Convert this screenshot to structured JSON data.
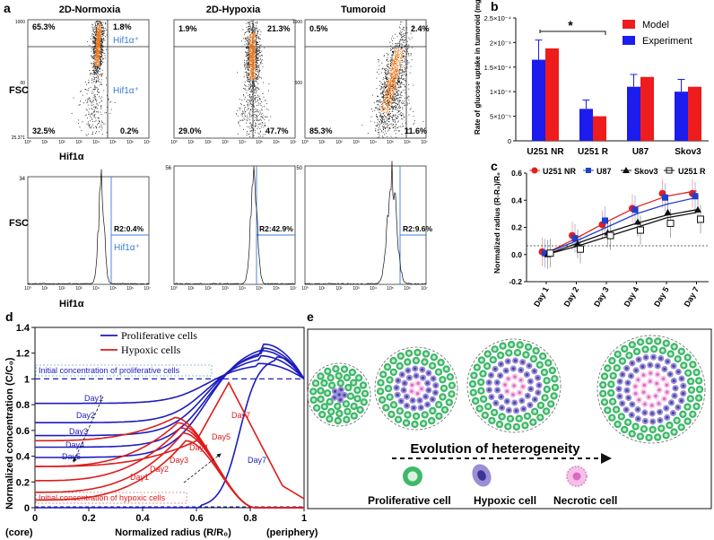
{
  "panel_labels": {
    "a": "a",
    "b": "b",
    "c": "c",
    "d": "d",
    "e": "e"
  },
  "colors": {
    "model": "#ee1c1c",
    "experiment": "#1c1cee",
    "hif": "#3a7bd5",
    "prolif": "#1c1cbe",
    "hypoxic": "#dd1c1c",
    "green_cell": "#3fb86a",
    "purple_cell": "#9a8fd6",
    "pink_cell": "#f08fd0"
  },
  "panel_a": {
    "titles": [
      "2D-Normoxia",
      "2D-Hypoxia",
      "Tumoroid"
    ],
    "fsc_label": "FSC",
    "xlabel": "Hif1α",
    "hif_plus": "Hif1α⁺",
    "scatter": [
      {
        "q": [
          "65.3%",
          "1.8%",
          "32.5%",
          "0.2%"
        ],
        "ymax": "1000",
        "ymid": "00",
        "ymin": "25.371"
      },
      {
        "q": [
          "1.9%",
          "21.3%",
          "29.0%",
          "47.7%"
        ]
      },
      {
        "q": [
          "0.5%",
          "2.4%",
          "85.3%",
          "11.6%"
        ],
        "ymax": "1000",
        "ymid": "500"
      }
    ],
    "histos": [
      {
        "r2": "R2:0.4%",
        "ymax": "34"
      },
      {
        "r2": "R2:42.9%",
        "ymax": "56"
      },
      {
        "r2": "R2:9.6%",
        "ymax": "50"
      }
    ],
    "xticks": [
      "10⁰",
      "10¹",
      "10²",
      "10³",
      "10⁴",
      "10⁵",
      "10⁶",
      "10⁷"
    ]
  },
  "chart_data": [
    {
      "type": "bar",
      "title": "",
      "ylabel": "Rate of glucose uptake in tumoroid (mg.min⁻¹)",
      "categories": [
        "U251 NR",
        "U251 R",
        "U87",
        "Skov3"
      ],
      "series": [
        {
          "name": "Experiment",
          "values": [
            0.000165,
            6.5e-05,
            0.00011,
            0.0001
          ],
          "errors": [
            4e-05,
            1.8e-05,
            2.5e-05,
            2.5e-05
          ]
        },
        {
          "name": "Model",
          "values": [
            0.000188,
            5e-05,
            0.00013,
            0.00011
          ]
        }
      ],
      "ylim": [
        0,
        0.00025
      ],
      "yticks": [
        0,
        5e-05,
        0.0001,
        0.00015,
        0.0002,
        0.00025
      ],
      "ytick_labels": [
        "0",
        "5×10⁻⁵",
        "1×10⁻⁴",
        "1.5×10⁻⁴",
        "2×10⁻⁴",
        "2.5×10⁻⁴"
      ],
      "legend": [
        "Model",
        "Experiment"
      ],
      "legend_position": "top-right",
      "annotation": "*"
    },
    {
      "type": "scatter",
      "ylabel": "Normalized radius (R-R₀)/R₀",
      "categories": [
        "Day 1",
        "Day 2",
        "Day 3",
        "Day 4",
        "Day 5",
        "Day 7"
      ],
      "ylim": [
        -0.2,
        0.6
      ],
      "yticks": [
        "-0.2",
        "0.0",
        "0.2",
        "0.4",
        "0.6"
      ],
      "series": [
        {
          "name": "U251 NR",
          "marker": "circle",
          "color": "#e02020",
          "values": [
            0.02,
            0.14,
            0.22,
            0.34,
            0.45,
            0.45
          ],
          "fit": [
            0.01,
            0.12,
            0.24,
            0.35,
            0.43,
            0.47
          ]
        },
        {
          "name": "U87",
          "marker": "square",
          "color": "#1f3fd0",
          "values": [
            0.01,
            0.12,
            0.25,
            0.33,
            0.42,
            0.43
          ],
          "fit": [
            0.01,
            0.1,
            0.2,
            0.3,
            0.37,
            0.42
          ]
        },
        {
          "name": "Skov3",
          "marker": "triangle",
          "color": "#111111",
          "values": [
            0.0,
            0.08,
            0.16,
            0.24,
            0.31,
            0.33
          ],
          "fit": [
            0.0,
            0.08,
            0.16,
            0.23,
            0.29,
            0.33
          ]
        },
        {
          "name": "U251 R",
          "marker": "open-square",
          "color": "#111111",
          "values": [
            0.01,
            0.04,
            0.14,
            0.18,
            0.23,
            0.26
          ],
          "fit": [
            0.0,
            0.06,
            0.13,
            0.2,
            0.27,
            0.31
          ]
        }
      ]
    },
    {
      "type": "line",
      "xlabel": "Normalized radius (R/R₀)",
      "ylabel": "Normalized concentration (C/C₀)",
      "xlim": [
        0,
        1
      ],
      "ylim": [
        0,
        1.4
      ],
      "xticks": [
        "0",
        "0.2",
        "0.4",
        "0.6",
        "0.8",
        "1"
      ],
      "yticks": [
        "0",
        "0.2",
        "0.4",
        "0.6",
        "0.8",
        "1",
        "1.2",
        "1.4"
      ],
      "x_left_note": "(core)",
      "x_right_note": "(periphery)",
      "legend": [
        "Proliferative cells",
        "Hypoxic cells"
      ],
      "box_prolif": "Initial concentration of proliferative cells",
      "box_hypoxic": "Initial concentration of hypoxic cells",
      "blue_labels": [
        "Day1",
        "Day2",
        "Day3",
        "Day4",
        "Day5",
        "Day7"
      ],
      "red_labels": [
        "Day1",
        "Day2",
        "Day3",
        "Day4",
        "Day5",
        "Day7"
      ],
      "series": [
        {
          "name": "Proliferative Day1",
          "start": 0.81,
          "peak": 1.12
        },
        {
          "name": "Proliferative Day2",
          "start": 0.66,
          "peak": 1.18
        },
        {
          "name": "Proliferative Day3",
          "start": 0.56,
          "peak": 1.22
        },
        {
          "name": "Proliferative Day4",
          "start": 0.47,
          "peak": 1.24
        },
        {
          "name": "Proliferative Day5",
          "start": 0.39,
          "peak": 1.27
        },
        {
          "name": "Hypoxic Day1",
          "start": 0.06,
          "peak": 0.52
        },
        {
          "name": "Hypoxic Day2",
          "start": 0.12,
          "peak": 0.58
        },
        {
          "name": "Hypoxic Day3",
          "start": 0.21,
          "peak": 0.62
        },
        {
          "name": "Hypoxic Day4",
          "start": 0.32,
          "peak": 0.66
        },
        {
          "name": "Hypoxic Day5",
          "start": 0.52,
          "peak": 0.7
        }
      ]
    }
  ],
  "panel_e": {
    "title": "Evolution of heterogeneity",
    "legend": [
      "Proliferative cell",
      "Hypoxic cell",
      "Necrotic cell"
    ]
  }
}
